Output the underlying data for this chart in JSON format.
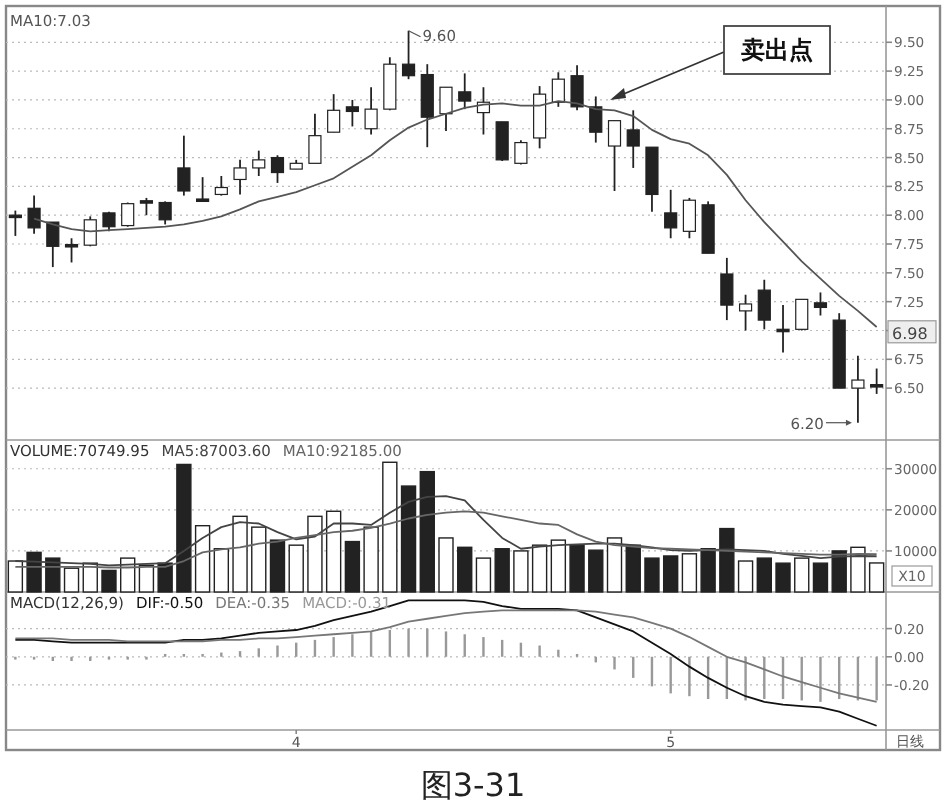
{
  "chart_data": [
    {
      "type": "candlestick",
      "color": "#222222",
      "categories": [
        null,
        null,
        null,
        null,
        null,
        null,
        null,
        null,
        null,
        null,
        null,
        null,
        null,
        null,
        null,
        null,
        null,
        null,
        null,
        null,
        null,
        null,
        null,
        null,
        null,
        null,
        null,
        null,
        null,
        null,
        null,
        null,
        null,
        null,
        null,
        null,
        null,
        null,
        null,
        null,
        null,
        null,
        null,
        null,
        null,
        null,
        null
      ],
      "ohlc": [
        [
          7.98,
          8.04,
          7.82,
          8.0
        ],
        [
          8.06,
          8.17,
          7.84,
          7.89
        ],
        [
          7.94,
          7.94,
          7.55,
          7.73
        ],
        [
          7.73,
          7.8,
          7.59,
          7.74
        ],
        [
          7.74,
          7.99,
          7.73,
          7.96
        ],
        [
          8.02,
          8.03,
          7.86,
          7.9
        ],
        [
          7.91,
          8.11,
          7.9,
          8.1
        ],
        [
          8.11,
          8.15,
          8.0,
          8.12
        ],
        [
          8.11,
          8.12,
          7.92,
          7.96
        ],
        [
          8.41,
          8.69,
          8.17,
          8.21
        ],
        [
          8.12,
          8.33,
          8.12,
          8.14
        ],
        [
          8.18,
          8.34,
          8.17,
          8.24
        ],
        [
          8.31,
          8.48,
          8.18,
          8.41
        ],
        [
          8.41,
          8.56,
          8.34,
          8.48
        ],
        [
          8.5,
          8.52,
          8.28,
          8.37
        ],
        [
          8.4,
          8.48,
          8.4,
          8.45
        ],
        [
          8.45,
          8.88,
          8.45,
          8.69
        ],
        [
          8.72,
          9.05,
          8.72,
          8.91
        ],
        [
          8.94,
          9.0,
          8.77,
          8.9
        ],
        [
          8.75,
          9.11,
          8.7,
          8.92
        ],
        [
          8.92,
          9.37,
          8.91,
          9.31
        ],
        [
          9.31,
          9.6,
          9.18,
          9.21
        ],
        [
          9.22,
          9.31,
          8.59,
          8.85
        ],
        [
          8.88,
          9.11,
          8.73,
          9.11
        ],
        [
          9.07,
          9.23,
          8.92,
          8.99
        ],
        [
          8.89,
          9.11,
          8.7,
          8.98
        ],
        [
          8.81,
          8.81,
          8.47,
          8.48
        ],
        [
          8.45,
          8.65,
          8.44,
          8.63
        ],
        [
          8.67,
          9.12,
          8.58,
          9.05
        ],
        [
          8.98,
          9.24,
          8.94,
          9.18
        ],
        [
          9.21,
          9.3,
          8.91,
          8.94
        ],
        [
          8.94,
          9.03,
          8.63,
          8.72
        ],
        [
          8.6,
          8.82,
          8.21,
          8.82
        ],
        [
          8.74,
          8.91,
          8.41,
          8.6
        ],
        [
          8.59,
          8.59,
          8.03,
          8.18
        ],
        [
          8.02,
          8.22,
          7.8,
          7.89
        ],
        [
          7.86,
          8.15,
          7.8,
          8.13
        ],
        [
          8.09,
          8.12,
          7.67,
          7.67
        ],
        [
          7.49,
          7.63,
          7.09,
          7.22
        ],
        [
          7.17,
          7.31,
          7.0,
          7.23
        ],
        [
          7.35,
          7.44,
          7.01,
          7.09
        ],
        [
          6.99,
          7.22,
          6.81,
          7.01
        ],
        [
          7.01,
          7.27,
          7.0,
          7.27
        ],
        [
          7.24,
          7.33,
          7.13,
          7.2
        ],
        [
          7.09,
          7.15,
          6.5,
          6.5
        ],
        [
          6.5,
          6.78,
          6.2,
          6.57
        ],
        [
          6.52,
          6.67,
          6.45,
          6.52
        ]
      ],
      "series": [
        {
          "type": "line",
          "name": "MA10:7.03",
          "color": "#555555",
          "values": [
            null,
            7.97,
            7.92,
            7.88,
            7.86,
            7.87,
            7.88,
            7.89,
            7.9,
            7.92,
            7.95,
            7.99,
            8.05,
            8.12,
            8.16,
            8.2,
            8.26,
            8.32,
            8.42,
            8.52,
            8.65,
            8.76,
            8.83,
            8.88,
            8.93,
            8.96,
            8.97,
            8.95,
            8.95,
            8.99,
            8.97,
            8.92,
            8.91,
            8.86,
            8.74,
            8.66,
            8.62,
            8.52,
            8.35,
            8.13,
            7.94,
            7.77,
            7.6,
            7.45,
            7.3,
            7.17,
            7.03
          ]
        }
      ],
      "ylim": [
        6.05,
        9.78
      ],
      "yticks": [
        {
          "value": 6.5,
          "label": "6.50"
        },
        {
          "value": 6.75,
          "label": "6.75"
        },
        {
          "value": 7,
          "label": null
        },
        {
          "value": 7.25,
          "label": "7.25"
        },
        {
          "value": 7.5,
          "label": "7.50"
        },
        {
          "value": 7.75,
          "label": "7.75"
        },
        {
          "value": 8,
          "label": "8.00"
        },
        {
          "value": 8.25,
          "label": "8.25"
        },
        {
          "value": 8.5,
          "label": "8.50"
        },
        {
          "value": 8.75,
          "label": "8.75"
        },
        {
          "value": 9,
          "label": "9.00"
        },
        {
          "value": 9.25,
          "label": "9.25"
        },
        {
          "value": 9.5,
          "label": "9.50"
        }
      ],
      "grid": "y",
      "legend": "top left",
      "tick_labels": "y",
      "annotations": [
        "卖出点",
        "9.60",
        "6.20",
        {
          "text": "6.98",
          "y": 6.98
        }
      ]
    },
    {
      "type": "bar",
      "categories": [
        null,
        null,
        null,
        null,
        null,
        null,
        null,
        null,
        null,
        null,
        null,
        null,
        null,
        null,
        null,
        null,
        null,
        null,
        null,
        null,
        null,
        null,
        null,
        null,
        null,
        null,
        null,
        null,
        null,
        null,
        null,
        null,
        null,
        null,
        null,
        null,
        null,
        null,
        null,
        null,
        null,
        null,
        null,
        null,
        null,
        null,
        null
      ],
      "series": [
        {
          "name": "VOLUME:70749.95",
          "values": [
            7540,
            9650,
            8250,
            5790,
            7020,
            5260,
            8250,
            6490,
            7020,
            31050,
            16140,
            10530,
            18420,
            15790,
            12630,
            11400,
            18420,
            19650,
            12280,
            15790,
            31580,
            25790,
            29300,
            13160,
            10880,
            8250,
            10530,
            10000,
            11400,
            12630,
            11400,
            10180,
            13160,
            11400,
            8250,
            8770,
            9300,
            10530,
            15440,
            7540,
            8250,
            7020,
            8250,
            7020,
            10000,
            10880,
            7070
          ],
          "colors": [
            "#ffffff",
            "#222222",
            "#222222",
            "#ffffff",
            "#ffffff",
            "#222222",
            "#ffffff",
            "#ffffff",
            "#222222",
            "#222222",
            "#ffffff",
            "#ffffff",
            "#ffffff",
            "#ffffff",
            "#222222",
            "#ffffff",
            "#ffffff",
            "#ffffff",
            "#222222",
            "#ffffff",
            "#ffffff",
            "#222222",
            "#222222",
            "#ffffff",
            "#222222",
            "#ffffff",
            "#222222",
            "#ffffff",
            "#ffffff",
            "#ffffff",
            "#222222",
            "#222222",
            "#ffffff",
            "#222222",
            "#222222",
            "#222222",
            "#ffffff",
            "#222222",
            "#222222",
            "#ffffff",
            "#222222",
            "#222222",
            "#ffffff",
            "#222222",
            "#222222",
            "#ffffff",
            "#ffffff"
          ]
        },
        {
          "type": "line",
          "name": "MA5:87003.60",
          "color": "#444444",
          "values": [
            7540,
            7370,
            7190,
            7020,
            6840,
            6490,
            6670,
            6840,
            7020,
            10000,
            13160,
            15790,
            17020,
            16670,
            14560,
            12810,
            13510,
            16670,
            16670,
            16320,
            19300,
            21930,
            23160,
            23330,
            22280,
            17540,
            13160,
            10530,
            11050,
            11400,
            11580,
            11750,
            11750,
            11400,
            10880,
            10180,
            10000,
            10180,
            10350,
            10180,
            10000,
            9300,
            8770,
            8250,
            8600,
            8770,
            8700
          ]
        },
        {
          "type": "line",
          "name": "MA10:92185.00",
          "color": "#666666",
          "values": [
            6140,
            6140,
            6140,
            6140,
            6140,
            5960,
            5960,
            6140,
            6140,
            7540,
            9650,
            10350,
            10880,
            11750,
            12280,
            13160,
            13860,
            14560,
            14910,
            15610,
            16670,
            17890,
            18770,
            19300,
            19650,
            19300,
            18420,
            17540,
            16670,
            16320,
            14040,
            12280,
            11400,
            11050,
            10700,
            10530,
            10350,
            10180,
            10000,
            9820,
            9650,
            9470,
            9300,
            9120,
            9120,
            9300,
            9220
          ]
        }
      ],
      "ylim": [
        0,
        37000
      ],
      "yticks": [
        10000,
        20000,
        30000
      ],
      "grid": "y",
      "legend": "top left",
      "tick_labels": "y",
      "annotations": [
        "X10"
      ]
    },
    {
      "type": "bar",
      "title": "MACD(12,26,9)",
      "categories": [
        null,
        null,
        null,
        null,
        null,
        null,
        null,
        null,
        null,
        null,
        null,
        null,
        null,
        null,
        null,
        "4",
        null,
        null,
        null,
        null,
        null,
        null,
        null,
        null,
        null,
        null,
        null,
        null,
        null,
        null,
        null,
        null,
        null,
        null,
        null,
        "5",
        null,
        null,
        null,
        null,
        null,
        null,
        null,
        null,
        null,
        null,
        null
      ],
      "series": [
        {
          "type": "line",
          "name": "DIF:-0.50",
          "color": "#111111",
          "values": [
            0.12,
            0.12,
            0.11,
            0.1,
            0.1,
            0.1,
            0.1,
            0.1,
            0.1,
            0.12,
            0.12,
            0.13,
            0.15,
            0.17,
            0.18,
            0.19,
            0.22,
            0.26,
            0.29,
            0.32,
            0.36,
            0.4,
            0.4,
            0.4,
            0.4,
            0.39,
            0.36,
            0.34,
            0.34,
            0.34,
            0.33,
            0.28,
            0.23,
            0.18,
            0.1,
            0.02,
            -0.07,
            -0.15,
            -0.22,
            -0.28,
            -0.32,
            -0.34,
            -0.35,
            -0.36,
            -0.39,
            -0.44,
            -0.49
          ]
        },
        {
          "type": "line",
          "name": "DEA:-0.35",
          "color": "#777777",
          "values": [
            0.13,
            0.13,
            0.13,
            0.12,
            0.12,
            0.12,
            0.11,
            0.11,
            0.11,
            0.11,
            0.11,
            0.12,
            0.12,
            0.13,
            0.13,
            0.14,
            0.15,
            0.16,
            0.17,
            0.18,
            0.21,
            0.25,
            0.27,
            0.29,
            0.31,
            0.32,
            0.33,
            0.33,
            0.33,
            0.33,
            0.33,
            0.32,
            0.3,
            0.28,
            0.24,
            0.2,
            0.14,
            0.07,
            0.0,
            -0.04,
            -0.09,
            -0.14,
            -0.18,
            -0.22,
            -0.26,
            -0.29,
            -0.32
          ]
        },
        {
          "type": "bar",
          "name": "MACD:-0.31",
          "color": "#999999",
          "values": [
            -0.02,
            -0.02,
            -0.03,
            -0.03,
            -0.03,
            -0.02,
            -0.02,
            -0.02,
            0.02,
            0.02,
            0.02,
            0.03,
            0.04,
            0.06,
            0.08,
            0.1,
            0.12,
            0.14,
            0.16,
            0.18,
            0.19,
            0.2,
            0.2,
            0.18,
            0.16,
            0.14,
            0.12,
            0.1,
            0.08,
            0.05,
            0.02,
            -0.04,
            -0.09,
            -0.15,
            -0.21,
            -0.26,
            -0.28,
            -0.3,
            -0.3,
            -0.31,
            -0.3,
            -0.3,
            -0.31,
            -0.32,
            -0.3,
            -0.31,
            -0.31
          ]
        }
      ],
      "ylim": [
        -0.52,
        0.46
      ],
      "yticks": [
        {
          "value": 0.2,
          "label": "0.20"
        },
        {
          "value": 0,
          "label": "0.00"
        },
        {
          "value": -0.2,
          "label": "-0.20"
        }
      ],
      "grid": "y",
      "legend": "top left",
      "annotations": [
        "日线",
        "图3-31"
      ]
    }
  ]
}
